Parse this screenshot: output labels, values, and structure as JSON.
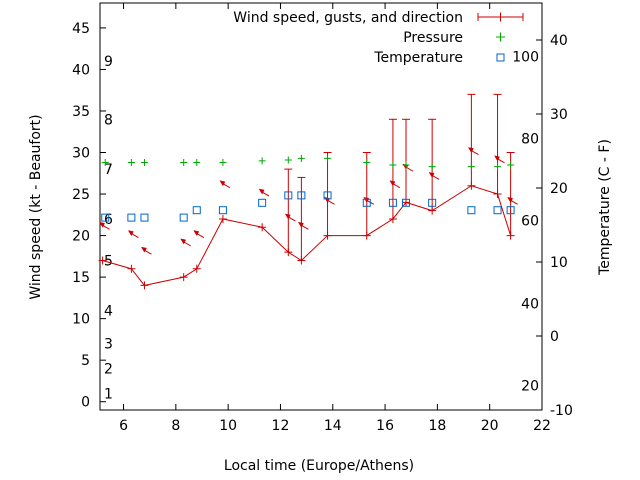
{
  "chart_data": {
    "type": "line",
    "xlabel": "Local time (Europe/Athens)",
    "ylabel": "Wind speed (kt - Beaufort)",
    "y2label": "Temperature (C - F)",
    "xlim": [
      5.1,
      22
    ],
    "ylim": [
      -1,
      48
    ],
    "y2lim": [
      -10,
      45
    ],
    "x_ticks": [
      6,
      8,
      10,
      12,
      14,
      16,
      18,
      20,
      22
    ],
    "y_ticks": [
      0,
      5,
      10,
      15,
      20,
      25,
      30,
      35,
      40,
      45
    ],
    "y2_ticks": [
      -10,
      0,
      10,
      20,
      30,
      40
    ],
    "grid": false,
    "legend_position": "top-right",
    "beaufort_labels": [
      {
        "text": "1",
        "y": 1
      },
      {
        "text": "2",
        "y": 4
      },
      {
        "text": "3",
        "y": 7
      },
      {
        "text": "4",
        "y": 11
      },
      {
        "text": "5",
        "y": 17
      },
      {
        "text": "6",
        "y": 22
      },
      {
        "text": "7",
        "y": 28
      },
      {
        "text": "8",
        "y": 34
      },
      {
        "text": "9",
        "y": 41
      }
    ],
    "fahrenheit_labels": [
      {
        "text": "20",
        "y2": -6.7
      },
      {
        "text": "40",
        "y2": 4.4
      },
      {
        "text": "60",
        "y2": 15.6
      },
      {
        "text": "80",
        "y2": 26.7
      },
      {
        "text": "100",
        "y2": 37.8
      }
    ],
    "series": [
      {
        "name": "Wind speed, gusts, and direction",
        "color": "#cc0000",
        "x": [
          5.2,
          6.3,
          6.8,
          8.3,
          8.8,
          9.8,
          11.3,
          12.3,
          12.8,
          13.8,
          15.3,
          16.3,
          16.8,
          17.8,
          19.3,
          20.3,
          20.8
        ],
        "values": [
          17,
          16,
          14,
          15,
          16,
          22,
          21,
          18,
          17,
          20,
          20,
          22,
          24,
          23,
          26,
          25,
          20
        ],
        "gusts": [
          null,
          null,
          null,
          null,
          null,
          null,
          null,
          28,
          27,
          30,
          30,
          34,
          34,
          34,
          37,
          37,
          30
        ],
        "direction_deg": [
          45,
          45,
          45,
          45,
          45,
          45,
          45,
          45,
          45,
          45,
          45,
          45,
          45,
          45,
          45,
          45,
          45
        ]
      },
      {
        "name": "Pressure",
        "color": "#00aa00",
        "x": [
          5.3,
          6.3,
          6.8,
          8.3,
          8.8,
          9.8,
          11.3,
          12.3,
          12.8,
          13.8,
          15.3,
          16.3,
          16.8,
          17.8,
          19.3,
          20.3,
          20.8
        ],
        "values": [
          28.8,
          28.8,
          28.8,
          28.8,
          28.8,
          28.8,
          29,
          29.1,
          29.3,
          29.3,
          28.8,
          28.5,
          28.5,
          28.3,
          28.3,
          28.3,
          28.5
        ]
      },
      {
        "name": "Temperature",
        "color": "#0066cc",
        "x": [
          5.3,
          6.3,
          6.8,
          8.3,
          8.8,
          9.8,
          11.3,
          12.3,
          12.8,
          13.8,
          15.3,
          16.3,
          16.8,
          17.8,
          19.3,
          20.3,
          20.8
        ],
        "values": [
          16,
          16,
          16,
          16,
          17,
          17,
          18,
          19,
          19,
          19,
          18,
          18,
          18,
          18,
          17,
          17,
          17
        ]
      }
    ]
  }
}
